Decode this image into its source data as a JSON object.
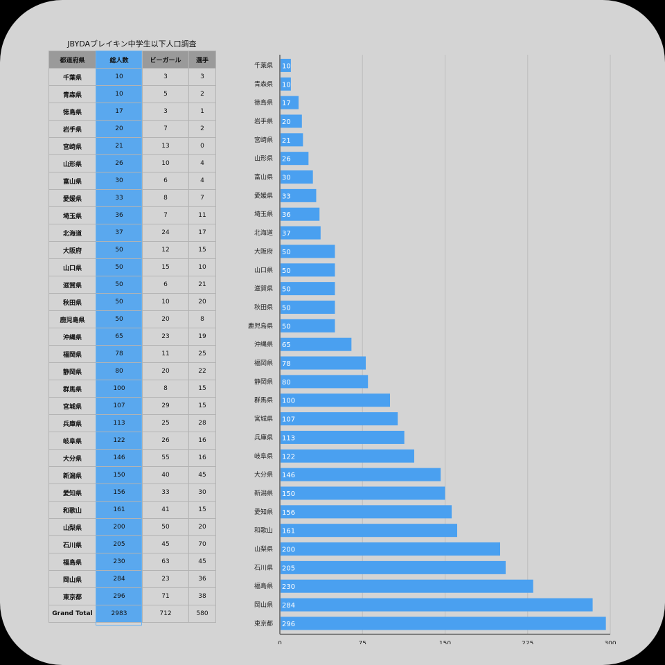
{
  "table": {
    "title": "JBYDAブレイキン中学生以下人口調査",
    "headers": [
      "都道府県",
      "総人数",
      "ビーガール",
      "選手"
    ],
    "rows": [
      [
        "千葉県",
        "10",
        "3",
        "3"
      ],
      [
        "青森県",
        "10",
        "5",
        "2"
      ],
      [
        "徳島県",
        "17",
        "3",
        "1"
      ],
      [
        "岩手県",
        "20",
        "7",
        "2"
      ],
      [
        "宮崎県",
        "21",
        "13",
        "0"
      ],
      [
        "山形県",
        "26",
        "10",
        "4"
      ],
      [
        "富山県",
        "30",
        "6",
        "4"
      ],
      [
        "愛媛県",
        "33",
        "8",
        "7"
      ],
      [
        "埼玉県",
        "36",
        "7",
        "11"
      ],
      [
        "北海道",
        "37",
        "24",
        "17"
      ],
      [
        "大阪府",
        "50",
        "12",
        "15"
      ],
      [
        "山口県",
        "50",
        "15",
        "10"
      ],
      [
        "滋賀県",
        "50",
        "6",
        "21"
      ],
      [
        "秋田県",
        "50",
        "10",
        "20"
      ],
      [
        "鹿児島県",
        "50",
        "20",
        "8"
      ],
      [
        "沖縄県",
        "65",
        "23",
        "19"
      ],
      [
        "福岡県",
        "78",
        "11",
        "25"
      ],
      [
        "静岡県",
        "80",
        "20",
        "22"
      ],
      [
        "群馬県",
        "100",
        "8",
        "15"
      ],
      [
        "宮城県",
        "107",
        "29",
        "15"
      ],
      [
        "兵庫県",
        "113",
        "25",
        "28"
      ],
      [
        "岐阜県",
        "122",
        "26",
        "16"
      ],
      [
        "大分県",
        "146",
        "55",
        "16"
      ],
      [
        "新潟県",
        "150",
        "40",
        "45"
      ],
      [
        "愛知県",
        "156",
        "33",
        "30"
      ],
      [
        "和歌山",
        "161",
        "41",
        "15"
      ],
      [
        "山梨県",
        "200",
        "50",
        "20"
      ],
      [
        "石川県",
        "205",
        "45",
        "70"
      ],
      [
        "福島県",
        "230",
        "63",
        "45"
      ],
      [
        "岡山県",
        "284",
        "23",
        "36"
      ],
      [
        "東京都",
        "296",
        "71",
        "38"
      ]
    ],
    "grand_total": [
      "Grand Total",
      "2983",
      "712",
      "580"
    ]
  },
  "chart_data": {
    "type": "bar",
    "orientation": "horizontal",
    "categories": [
      "千葉県",
      "青森県",
      "徳島県",
      "岩手県",
      "宮崎県",
      "山形県",
      "富山県",
      "愛媛県",
      "埼玉県",
      "北海道",
      "大阪府",
      "山口県",
      "滋賀県",
      "秋田県",
      "鹿児島県",
      "沖縄県",
      "福岡県",
      "静岡県",
      "群馬県",
      "宮城県",
      "兵庫県",
      "岐阜県",
      "大分県",
      "新潟県",
      "愛知県",
      "和歌山",
      "山梨県",
      "石川県",
      "福島県",
      "岡山県",
      "東京都"
    ],
    "values": [
      10,
      10,
      17,
      20,
      21,
      26,
      30,
      33,
      36,
      37,
      50,
      50,
      50,
      50,
      50,
      65,
      78,
      80,
      100,
      107,
      113,
      122,
      146,
      150,
      156,
      161,
      200,
      205,
      230,
      284,
      296
    ],
    "xlim": [
      0,
      300
    ],
    "xticks": [
      "0",
      "75",
      "150",
      "225",
      "300"
    ],
    "data_labels": true,
    "grid": true,
    "bar_color": "#4aa0f0"
  },
  "colors": {
    "background": "#d4d4d4",
    "header": "#9a9a9a",
    "highlight": "#5aa8ee",
    "bar": "#4aa0f0"
  }
}
